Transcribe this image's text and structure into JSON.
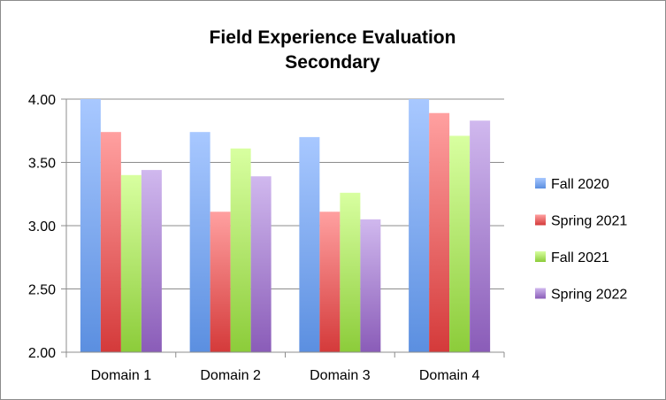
{
  "chart_data": {
    "type": "bar",
    "title": "Field Experience Evaluation",
    "subtitle": "Secondary",
    "xlabel": "",
    "ylabel": "",
    "categories": [
      "Domain 1",
      "Domain 2",
      "Domain 3",
      "Domain 4"
    ],
    "ylim": [
      2.0,
      4.0
    ],
    "yticks": [
      "2.00",
      "2.50",
      "3.00",
      "3.50",
      "4.00"
    ],
    "grid": "horizontal",
    "legend_position": "right",
    "series": [
      {
        "name": "Fall 2020",
        "values": [
          4.0,
          3.74,
          3.7,
          4.0
        ],
        "color": "#5b8fe0",
        "color_light": "#a8c8ff"
      },
      {
        "name": "Spring 2021",
        "values": [
          3.74,
          3.11,
          3.11,
          3.89
        ],
        "color": "#d43a3a",
        "color_light": "#ffa0a0"
      },
      {
        "name": "Fall 2021",
        "values": [
          3.4,
          3.61,
          3.26,
          3.71
        ],
        "color": "#8ccc3a",
        "color_light": "#d8ffa0"
      },
      {
        "name": "Spring 2022",
        "values": [
          3.44,
          3.39,
          3.05,
          3.83
        ],
        "color": "#8a5cb8",
        "color_light": "#d0b8ee"
      }
    ]
  }
}
